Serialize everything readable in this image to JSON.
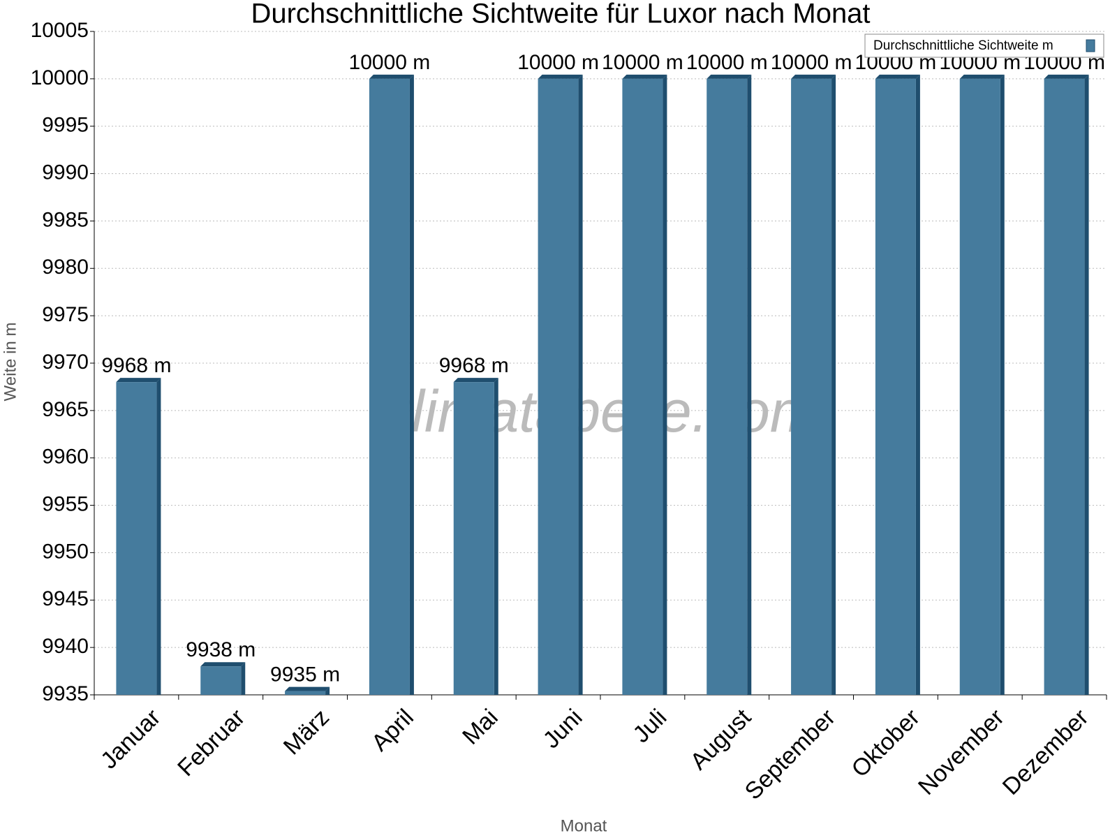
{
  "chart_data": {
    "type": "bar",
    "title": "Durchschnittliche Sichtweite für Luxor nach Monat",
    "watermark": "klimatabelle.com",
    "x_label": "Monat",
    "y_label": "Weite in m",
    "categories": [
      "Januar",
      "Februar",
      "März",
      "April",
      "Mai",
      "Juni",
      "Juli",
      "August",
      "September",
      "Oktober",
      "November",
      "Dezember"
    ],
    "series": [
      {
        "name": "Durchschnittliche Sichtweite m",
        "color": "#457b9d",
        "values": [
          9968,
          9938,
          9935.4,
          10000,
          9968,
          10000,
          10000,
          10000,
          10000,
          10000,
          10000,
          10000
        ],
        "value_labels": [
          "9968 m",
          "9938 m",
          "9935 m",
          "10000 m",
          "9968 m",
          "10000 m",
          "10000 m",
          "10000 m",
          "10000 m",
          "10000 m",
          "10000 m",
          "10000 m"
        ]
      }
    ],
    "ylim": [
      9935,
      10005
    ],
    "yticks": [
      9935,
      9940,
      9945,
      9950,
      9955,
      9960,
      9965,
      9970,
      9975,
      9980,
      9985,
      9990,
      9995,
      10000,
      10005
    ],
    "grid": true,
    "legend": "top-right"
  }
}
